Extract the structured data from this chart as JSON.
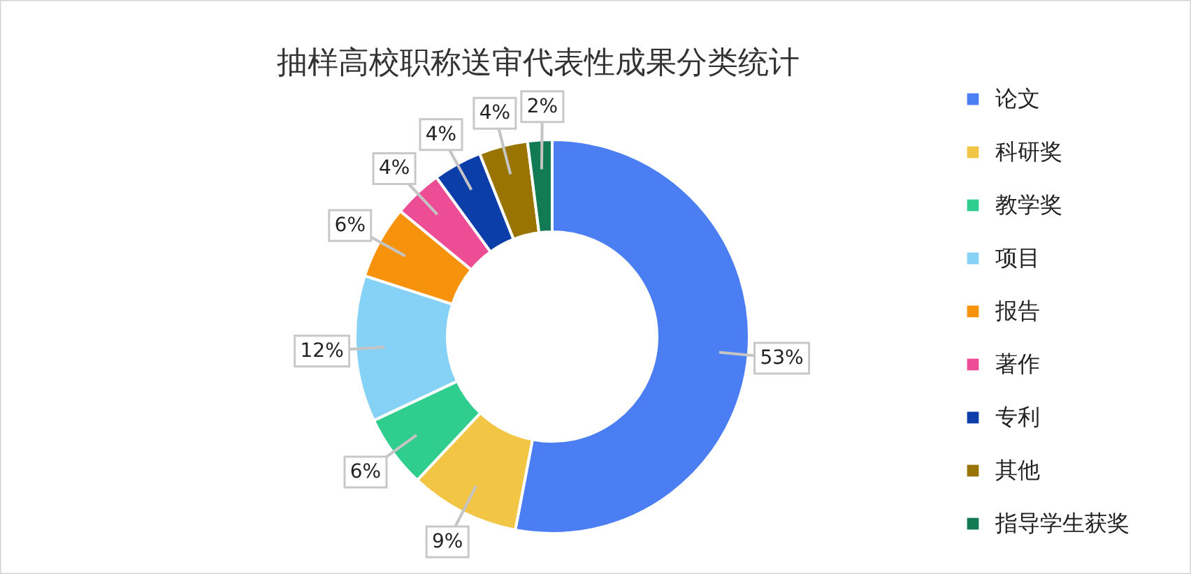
{
  "chart_data": {
    "type": "donut",
    "title": "抽样高校职称送审代表性成果分类统计",
    "categories": [
      "论文",
      "科研奖",
      "教学奖",
      "项目",
      "报告",
      "著作",
      "专利",
      "其他",
      "指导学生获奖"
    ],
    "values": [
      53,
      9,
      6,
      12,
      6,
      4,
      4,
      4,
      2
    ],
    "colors": [
      "#4a7ef2",
      "#f2c544",
      "#2fce8e",
      "#86d2f7",
      "#f7920c",
      "#ec4d94",
      "#0c3eaa",
      "#9a7400",
      "#137a56"
    ],
    "value_labels": [
      "53%",
      "9%",
      "6%",
      "12%",
      "6%",
      "4%",
      "4%",
      "4%",
      "2%"
    ],
    "legend": "right"
  }
}
